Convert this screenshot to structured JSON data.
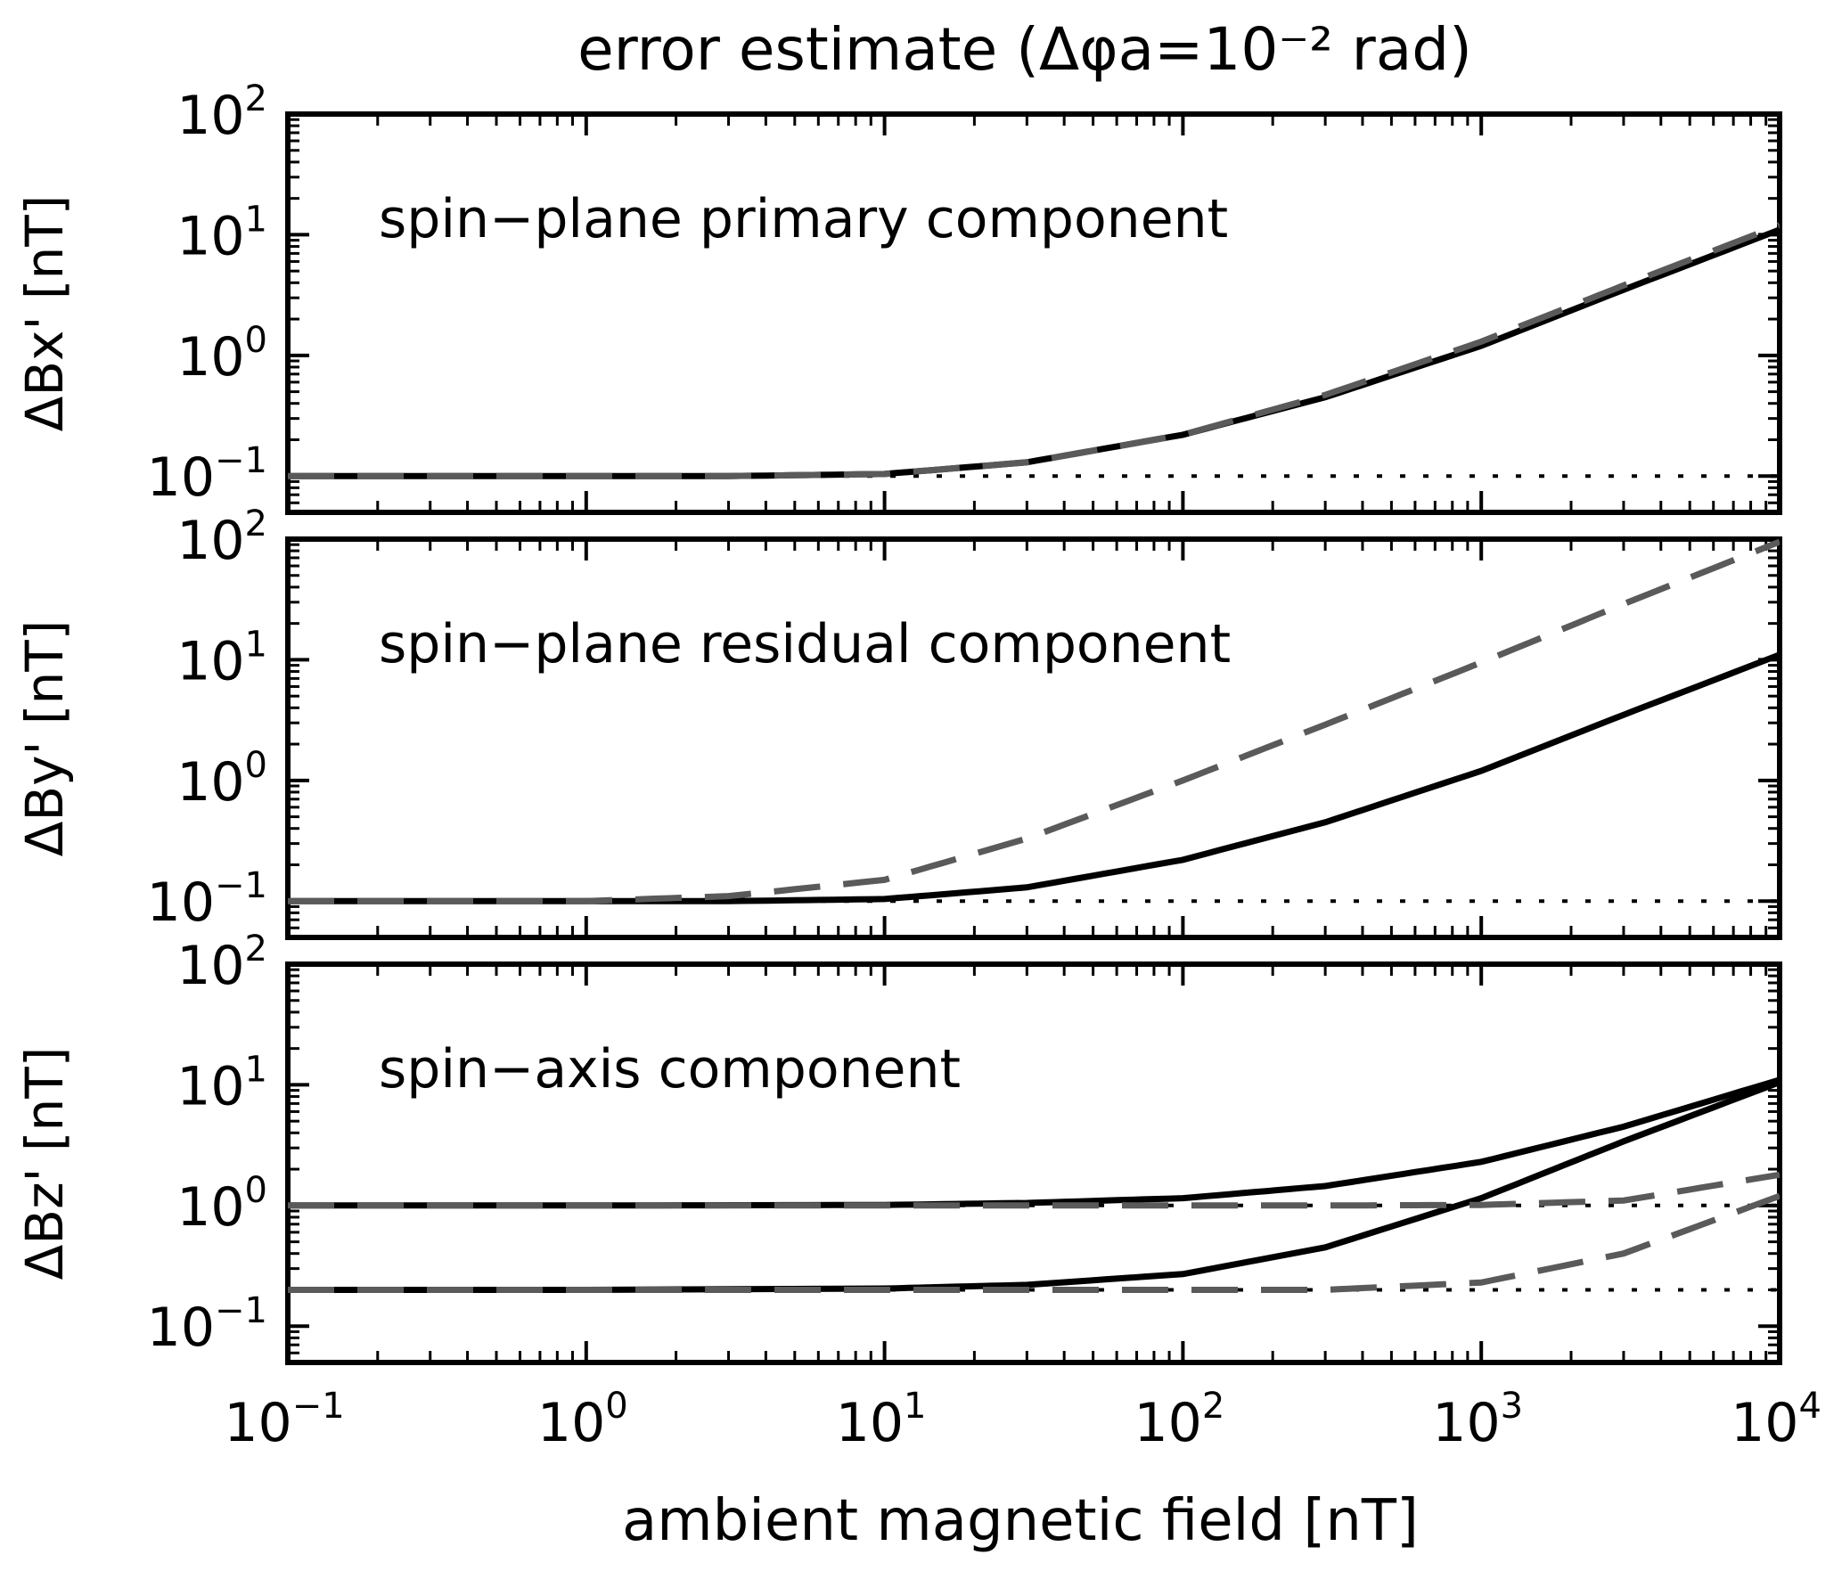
{
  "chart_data": {
    "type": "line",
    "title": "error estimate (Δφa=10⁻² rad)",
    "xlabel": "ambient magnetic field [nT]",
    "xscale": "log",
    "yscale": "log",
    "xlim": [
      0.1,
      10000
    ],
    "ylim": [
      0.05,
      100
    ],
    "x_ticks": [
      {
        "mantissa": "10",
        "exp": "−1",
        "value": 0.1
      },
      {
        "mantissa": "10",
        "exp": "0",
        "value": 1
      },
      {
        "mantissa": "10",
        "exp": "1",
        "value": 10
      },
      {
        "mantissa": "10",
        "exp": "2",
        "value": 100
      },
      {
        "mantissa": "10",
        "exp": "3",
        "value": 1000
      },
      {
        "mantissa": "10",
        "exp": "4",
        "value": 10000
      }
    ],
    "y_ticks": [
      {
        "mantissa": "10",
        "exp": "−1",
        "value": 0.1
      },
      {
        "mantissa": "10",
        "exp": "0",
        "value": 1
      },
      {
        "mantissa": "10",
        "exp": "1",
        "value": 10
      },
      {
        "mantissa": "10",
        "exp": "2",
        "value": 100
      }
    ],
    "panels": [
      {
        "ylabel": "ΔBx' [nT]",
        "label": "spin−plane primary component",
        "series": [
          {
            "style": "solid",
            "x": [
              0.1,
              1,
              3,
              10,
              30,
              100,
              300,
              1000,
              3000,
              10000
            ],
            "y": [
              0.1,
              0.1,
              0.1,
              0.104,
              0.13,
              0.22,
              0.45,
              1.2,
              3.5,
              11
            ]
          },
          {
            "style": "dashed",
            "x": [
              0.1,
              1,
              3,
              10,
              30,
              100,
              300,
              1000,
              3000,
              10000
            ],
            "y": [
              0.1,
              0.1,
              0.1,
              0.104,
              0.13,
              0.22,
              0.47,
              1.3,
              3.8,
              12
            ]
          },
          {
            "style": "dotted",
            "x": [
              0.1,
              10000
            ],
            "y": [
              0.1,
              0.1
            ]
          }
        ]
      },
      {
        "ylabel": "ΔBy' [nT]",
        "label": "spin−plane residual component",
        "series": [
          {
            "style": "solid",
            "x": [
              0.1,
              1,
              3,
              10,
              30,
              100,
              300,
              1000,
              3000,
              10000
            ],
            "y": [
              0.1,
              0.1,
              0.1,
              0.104,
              0.13,
              0.22,
              0.45,
              1.2,
              3.5,
              11
            ]
          },
          {
            "style": "dashed",
            "x": [
              0.1,
              1,
              3,
              10,
              30,
              100,
              300,
              1000,
              3000,
              10000
            ],
            "y": [
              0.1,
              0.1,
              0.11,
              0.15,
              0.33,
              1.0,
              2.9,
              9.5,
              29,
              95
            ]
          },
          {
            "style": "dotted",
            "x": [
              0.1,
              10000
            ],
            "y": [
              0.1,
              0.1
            ]
          }
        ]
      },
      {
        "ylabel": "ΔBz' [nT]",
        "label": "spin−axis component",
        "series": [
          {
            "style": "solid",
            "x": [
              0.1,
              1,
              10,
              30,
              100,
              300,
              1000,
              3000,
              10000
            ],
            "y": [
              1.0,
              1.0,
              1.01,
              1.05,
              1.15,
              1.45,
              2.3,
              4.5,
              11
            ]
          },
          {
            "style": "solid",
            "x": [
              0.1,
              1,
              10,
              30,
              100,
              300,
              1000,
              3000,
              10000
            ],
            "y": [
              0.2,
              0.2,
              0.205,
              0.22,
              0.27,
              0.45,
              1.15,
              3.4,
              10.5
            ]
          },
          {
            "style": "dashed",
            "x": [
              0.1,
              1,
              10,
              100,
              300,
              1000,
              3000,
              10000
            ],
            "y": [
              1.0,
              1.0,
              1.0,
              1.0,
              1.0,
              1.01,
              1.1,
              1.8
            ]
          },
          {
            "style": "dashed",
            "x": [
              0.1,
              1,
              10,
              100,
              300,
              1000,
              3000,
              10000
            ],
            "y": [
              0.2,
              0.2,
              0.2,
              0.2,
              0.2,
              0.23,
              0.4,
              1.2
            ]
          },
          {
            "style": "dotted",
            "x": [
              0.1,
              10000
            ],
            "y": [
              1.0,
              1.0
            ]
          },
          {
            "style": "dotted",
            "x": [
              0.1,
              10000
            ],
            "y": [
              0.2,
              0.2
            ]
          }
        ]
      }
    ],
    "colors": {
      "solid": "#000000",
      "dashed": "#5a5a5a",
      "dotted": "#000000"
    }
  }
}
